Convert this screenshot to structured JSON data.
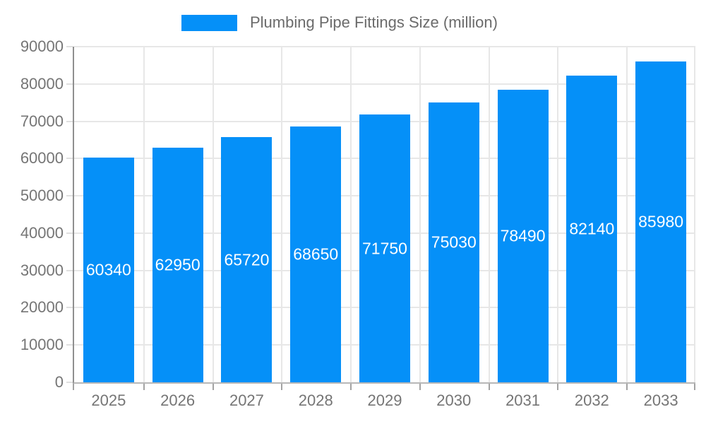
{
  "colors": {
    "background": "#ffffff",
    "bar": "#0590f8",
    "bar_label": "#ffffff",
    "axis_text": "#757575",
    "legend_text": "#6b6b6b",
    "gridline": "#e7e7e7",
    "y_axis_line": "#8f8f8f",
    "x_axis_line": "#b8b8b8",
    "x_tick": "#a3a3a3",
    "y_tick": "#e0e0e0"
  },
  "legend": {
    "label": "Plumbing Pipe Fittings Size (million)"
  },
  "chart_data": {
    "type": "bar",
    "title": "Plumbing Pipe Fittings Size (million)",
    "categories": [
      "2025",
      "2026",
      "2027",
      "2028",
      "2029",
      "2030",
      "2031",
      "2032",
      "2033"
    ],
    "values": [
      60340,
      62950,
      65720,
      68650,
      71750,
      75030,
      78490,
      82140,
      85980
    ],
    "xlabel": "",
    "ylabel": "",
    "ylim": [
      0,
      90000
    ],
    "ytick_step": 10000,
    "ytick_labels": [
      "0",
      "10000",
      "20000",
      "30000",
      "40000",
      "50000",
      "60000",
      "70000",
      "80000",
      "90000"
    ],
    "grid": true,
    "legend_position": "top",
    "bar_value_labels": "inside-center-white"
  }
}
